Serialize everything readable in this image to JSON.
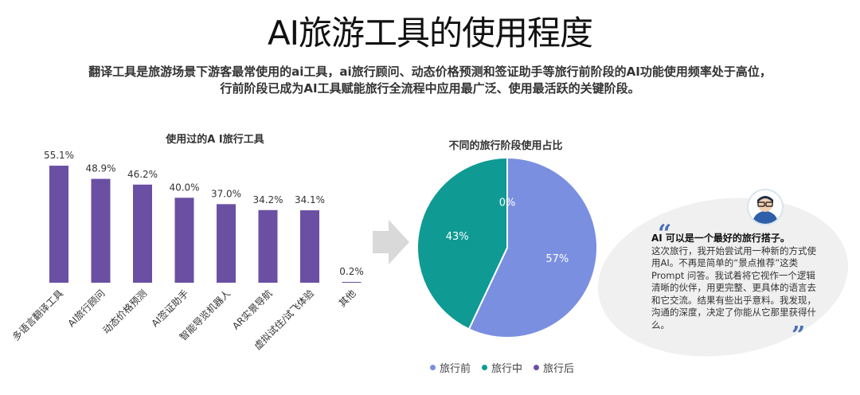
{
  "title": "AI旅游工具的使用程度",
  "subtitle_lines": [
    "翻译工具是旅游场景下游客最常使用的ai工具，ai旅行顾问、动态价格预测和签证助手等旅行前阶段的AI功能使用频率处于高位，",
    "行前阶段已成为AI工具赋能旅行全流程中应用最广泛、使用最活跃的关键阶段。"
  ],
  "chart_data": [
    {
      "type": "bar",
      "title": "使用过的A I旅行工具",
      "categories": [
        "多语言翻译工具",
        "AI旅行顾问",
        "动态价格预测",
        "AI签证助手",
        "智能导览机器人",
        "AR实景导航",
        "虚拟试住/试飞体验",
        "其他"
      ],
      "values": [
        55.1,
        48.9,
        46.2,
        40.0,
        37.0,
        34.2,
        34.1,
        0.2
      ],
      "labels": [
        "55.1%",
        "48.9%",
        "46.2%",
        "40.0%",
        "37.0%",
        "34.2%",
        "34.1%",
        "0.2%"
      ],
      "ylim": [
        0,
        60
      ],
      "color": "#6a4fa3"
    },
    {
      "type": "pie",
      "title": "不同的旅行阶段使用占比",
      "categories": [
        "旅行前",
        "旅行中",
        "旅行后"
      ],
      "values": [
        57,
        43,
        0
      ],
      "labels": [
        "57%",
        "43%",
        "0%"
      ],
      "colors": [
        "#7b8fe0",
        "#0f9a94",
        "#6a4fa3"
      ],
      "legend": "bottom"
    }
  ],
  "quote": {
    "heading": "AI 可以是一个最好的旅行搭子。",
    "body": "这次旅行，我开始尝试用一种新的方式使用AI。不再是简单的“景点推荐”这类 Prompt 问答。我试着将它视作一个逻辑清晰的伙伴，用更完整、更具体的语言去和它交流。结果有些出乎意料。我发现，沟通的深度，决定了你能从它那里获得什么。",
    "open_mark": "“",
    "close_mark": "”"
  },
  "arrow_color": "#d9d9d9"
}
